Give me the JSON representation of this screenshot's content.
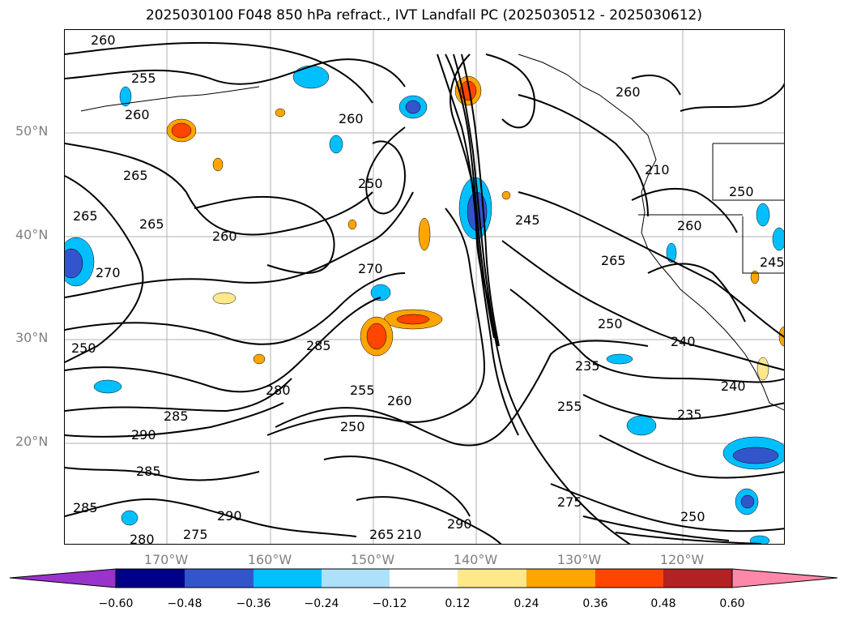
{
  "title": "2025030100 F048 850 hPa refract., IVT Landfall PC (2025030512 - 2025030612)",
  "lat_labels": [
    "50°N",
    "40°N",
    "30°N",
    "20°N"
  ],
  "lon_labels": [
    "170°W",
    "160°W",
    "150°W",
    "140°W",
    "130°W",
    "120°W"
  ],
  "contour_labels": [
    "260",
    "255",
    "260",
    "265",
    "265",
    "270",
    "260",
    "250",
    "260",
    "265",
    "250",
    "270",
    "285",
    "280",
    "255",
    "260",
    "250",
    "285",
    "290",
    "285",
    "285",
    "290",
    "275",
    "265",
    "210",
    "290",
    "280",
    "275",
    "255",
    "235",
    "250",
    "240",
    "245",
    "260",
    "265",
    "250",
    "235",
    "240",
    "260",
    "210",
    "250",
    "245"
  ],
  "colorbar": {
    "ticks": [
      "−0.60",
      "−0.48",
      "−0.36",
      "−0.24",
      "−0.12",
      "0.12",
      "0.24",
      "0.36",
      "0.48",
      "0.60"
    ],
    "colors": [
      "#9933CC",
      "#00008B",
      "#3355CC",
      "#00BFFF",
      "#ADE1FA",
      "#FFFFFF",
      "#FFE88A",
      "#FFA500",
      "#FF4500",
      "#B22222",
      "#FF88AA"
    ]
  }
}
